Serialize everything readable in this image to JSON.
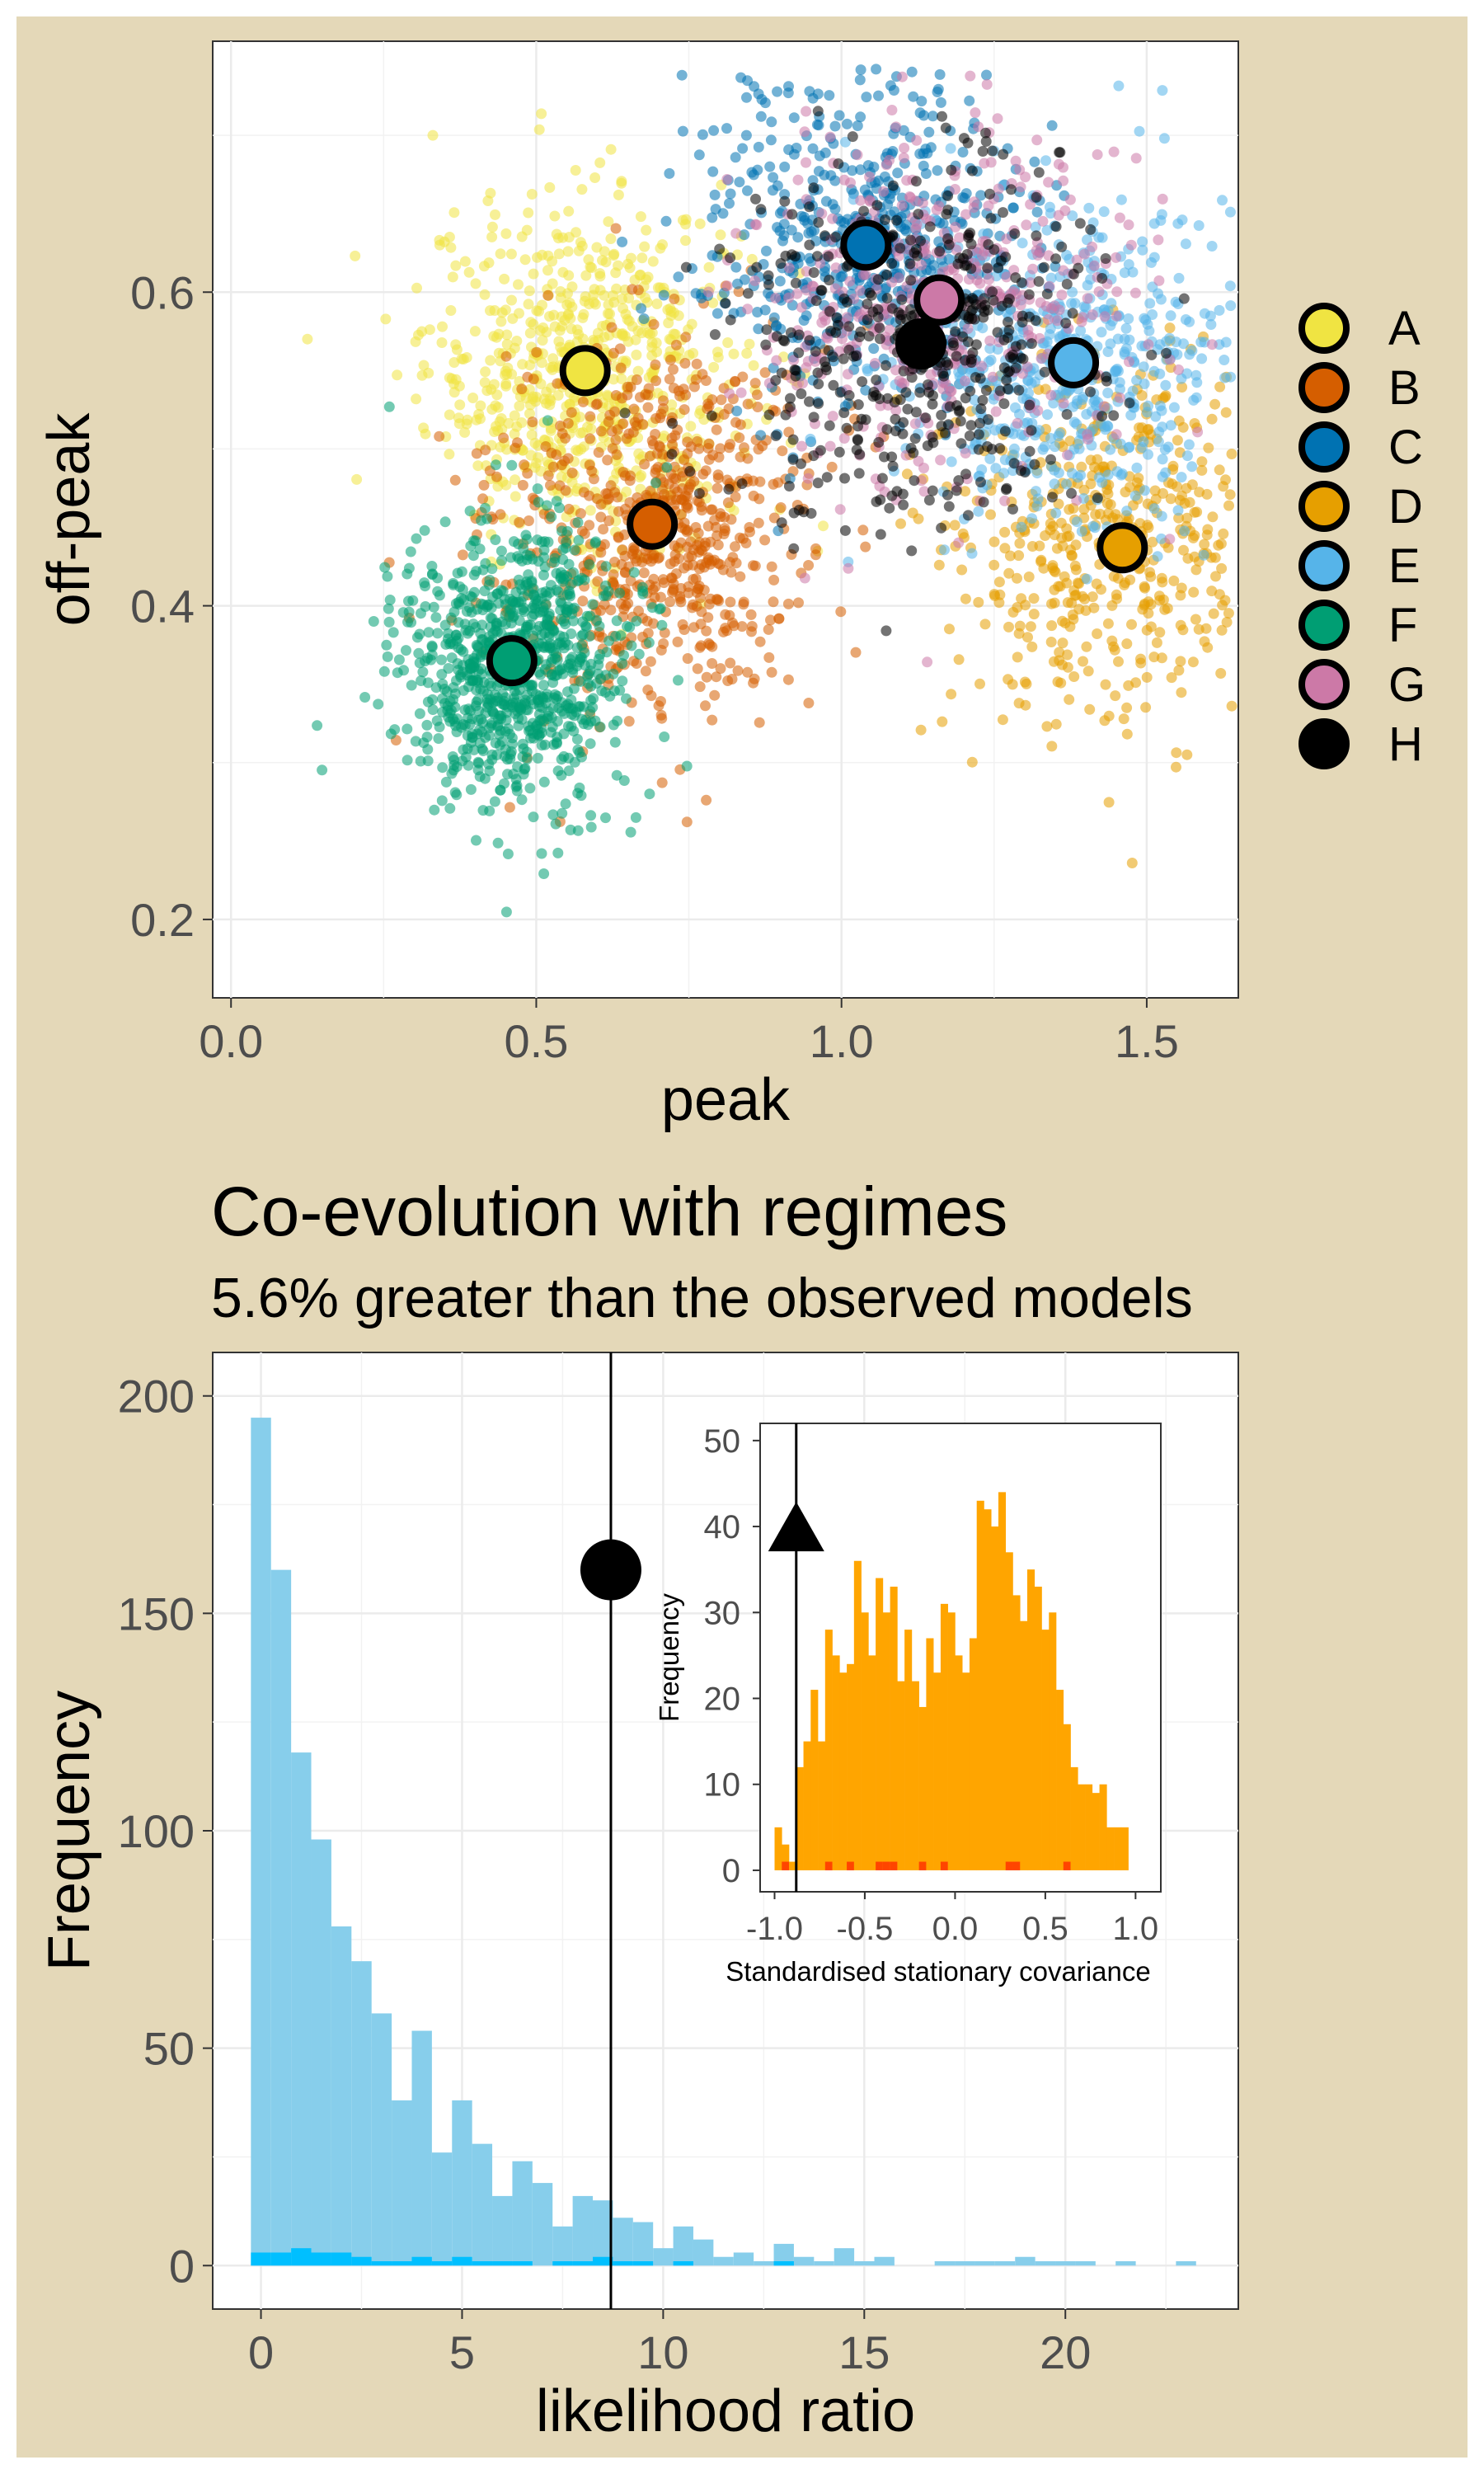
{
  "colors": {
    "background": "#e4d8b8",
    "panel": "#ffffff",
    "grid": "#ebebeb",
    "A": "#f0e442",
    "B": "#d55e00",
    "C": "#0072b2",
    "D": "#e69f00",
    "E": "#56b4e9",
    "F": "#009e73",
    "G": "#cc79a7",
    "H": "#000000",
    "hist_main": "#87ceeb",
    "hist_main_low": "#00bfff",
    "hist_inset": "#ffa500",
    "hist_inset_low": "#ff4500"
  },
  "chart_data": [
    {
      "type": "scatter",
      "xlabel": "peak",
      "ylabel": "off-peak",
      "xlim": [
        -0.03,
        1.65
      ],
      "ylim": [
        0.15,
        0.76
      ],
      "xticks": [
        "0.0",
        "0.5",
        "1.0",
        "1.5"
      ],
      "yticks": [
        "0.2",
        "0.4",
        "0.6"
      ],
      "grid": true,
      "legend_position": "right",
      "series": [
        {
          "name": "A",
          "center": [
            0.58,
            0.55
          ],
          "spread": [
            0.13,
            0.055
          ],
          "n": 700
        },
        {
          "name": "B",
          "center": [
            0.69,
            0.452
          ],
          "spread": [
            0.13,
            0.06
          ],
          "n": 700
        },
        {
          "name": "C",
          "center": [
            1.04,
            0.63
          ],
          "spread": [
            0.14,
            0.055
          ],
          "n": 550
        },
        {
          "name": "D",
          "center": [
            1.46,
            0.437
          ],
          "spread": [
            0.15,
            0.06
          ],
          "n": 550
        },
        {
          "name": "E",
          "center": [
            1.38,
            0.555
          ],
          "spread": [
            0.15,
            0.055
          ],
          "n": 550
        },
        {
          "name": "F",
          "center": [
            0.46,
            0.365
          ],
          "spread": [
            0.09,
            0.045
          ],
          "n": 900
        },
        {
          "name": "G",
          "center": [
            1.16,
            0.595
          ],
          "spread": [
            0.15,
            0.055
          ],
          "n": 450
        },
        {
          "name": "H",
          "center": [
            1.13,
            0.567
          ],
          "spread": [
            0.15,
            0.06
          ],
          "n": 450
        }
      ]
    },
    {
      "type": "bar",
      "title": "Co-evolution with regimes",
      "subtitle": "5.6% greater than the observed models",
      "xlabel": "likelihood ratio",
      "ylabel": "Frequency",
      "xlim": [
        -1.2,
        24.3
      ],
      "ylim": [
        -10,
        210
      ],
      "xticks": [
        "0",
        "5",
        "10",
        "15",
        "20"
      ],
      "yticks": [
        "0",
        "50",
        "100",
        "150",
        "200"
      ],
      "grid": true,
      "bin_width": 0.5,
      "x": [
        0,
        0.5,
        1,
        1.5,
        2,
        2.5,
        3,
        3.5,
        4,
        4.5,
        5,
        5.5,
        6,
        6.5,
        7,
        7.5,
        8,
        8.5,
        9,
        9.5,
        10,
        10.5,
        11,
        11.5,
        12,
        12.5,
        13,
        13.5,
        14,
        14.5,
        15,
        15.5,
        16,
        16.5,
        17,
        17.5,
        18,
        18.5,
        19,
        19.5,
        20,
        20.5,
        21,
        21.5,
        22,
        22.5,
        23
      ],
      "values": [
        195,
        160,
        118,
        98,
        78,
        70,
        58,
        38,
        54,
        26,
        38,
        28,
        16,
        24,
        19,
        9,
        16,
        15,
        11,
        10,
        4,
        9,
        6,
        2,
        3,
        1,
        5,
        2,
        1,
        4,
        1,
        2,
        0,
        0,
        1,
        1,
        1,
        1,
        2,
        1,
        1,
        1,
        0,
        1,
        0,
        0,
        1
      ],
      "low_values": [
        3,
        3,
        4,
        3,
        3,
        2,
        1,
        1,
        2,
        1,
        2,
        1,
        1,
        1,
        0,
        1,
        1,
        2,
        1,
        1,
        0,
        1,
        0,
        0,
        0,
        0,
        1,
        0,
        0,
        0,
        0,
        0,
        0,
        0,
        0,
        0,
        0,
        0,
        0,
        0,
        0,
        0,
        0,
        0,
        0,
        0,
        0
      ],
      "observed_line_x": 8.7,
      "point": {
        "x": 8.7,
        "y": 160
      }
    },
    {
      "type": "bar",
      "xlabel": "Standardised stationary covariance",
      "ylabel": "Frequency",
      "xlim": [
        -1.08,
        1.14
      ],
      "ylim": [
        -2.5,
        52
      ],
      "xticks": [
        "-1.0",
        "-0.5",
        "0.0",
        "0.5",
        "1.0"
      ],
      "yticks": [
        "0",
        "10",
        "20",
        "30",
        "40",
        "50"
      ],
      "grid": false,
      "bin_width": 0.04,
      "x": [
        -0.98,
        -0.94,
        -0.9,
        -0.86,
        -0.82,
        -0.78,
        -0.74,
        -0.7,
        -0.66,
        -0.62,
        -0.58,
        -0.54,
        -0.5,
        -0.46,
        -0.42,
        -0.38,
        -0.34,
        -0.3,
        -0.26,
        -0.22,
        -0.18,
        -0.14,
        -0.1,
        -0.06,
        -0.02,
        0.02,
        0.06,
        0.1,
        0.14,
        0.18,
        0.22,
        0.26,
        0.3,
        0.34,
        0.38,
        0.42,
        0.46,
        0.5,
        0.54,
        0.58,
        0.62,
        0.66,
        0.7,
        0.74,
        0.78,
        0.82,
        0.86,
        0.9,
        0.94
      ],
      "values": [
        5,
        3,
        1,
        12,
        15,
        21,
        15,
        28,
        25,
        23,
        24,
        36,
        30,
        25,
        34,
        30,
        33,
        22,
        28,
        22,
        19,
        27,
        23,
        31,
        30,
        25,
        23,
        27,
        43,
        42,
        40,
        44,
        37,
        32,
        29,
        35,
        33,
        28,
        30,
        21,
        17,
        12,
        10,
        10,
        9,
        10,
        5,
        5,
        5
      ],
      "low_values": [
        0,
        1,
        0,
        0,
        0,
        0,
        0,
        1,
        0,
        0,
        1,
        0,
        0,
        0,
        1,
        1,
        1,
        0,
        0,
        0,
        1,
        0,
        0,
        1,
        0,
        0,
        0,
        0,
        0,
        0,
        0,
        0,
        1,
        1,
        0,
        0,
        0,
        0,
        0,
        0,
        1,
        0,
        0,
        0,
        0,
        0,
        0,
        0,
        0
      ],
      "observed_line_x": -0.88,
      "point": {
        "x": -0.88,
        "y": 40
      }
    }
  ]
}
